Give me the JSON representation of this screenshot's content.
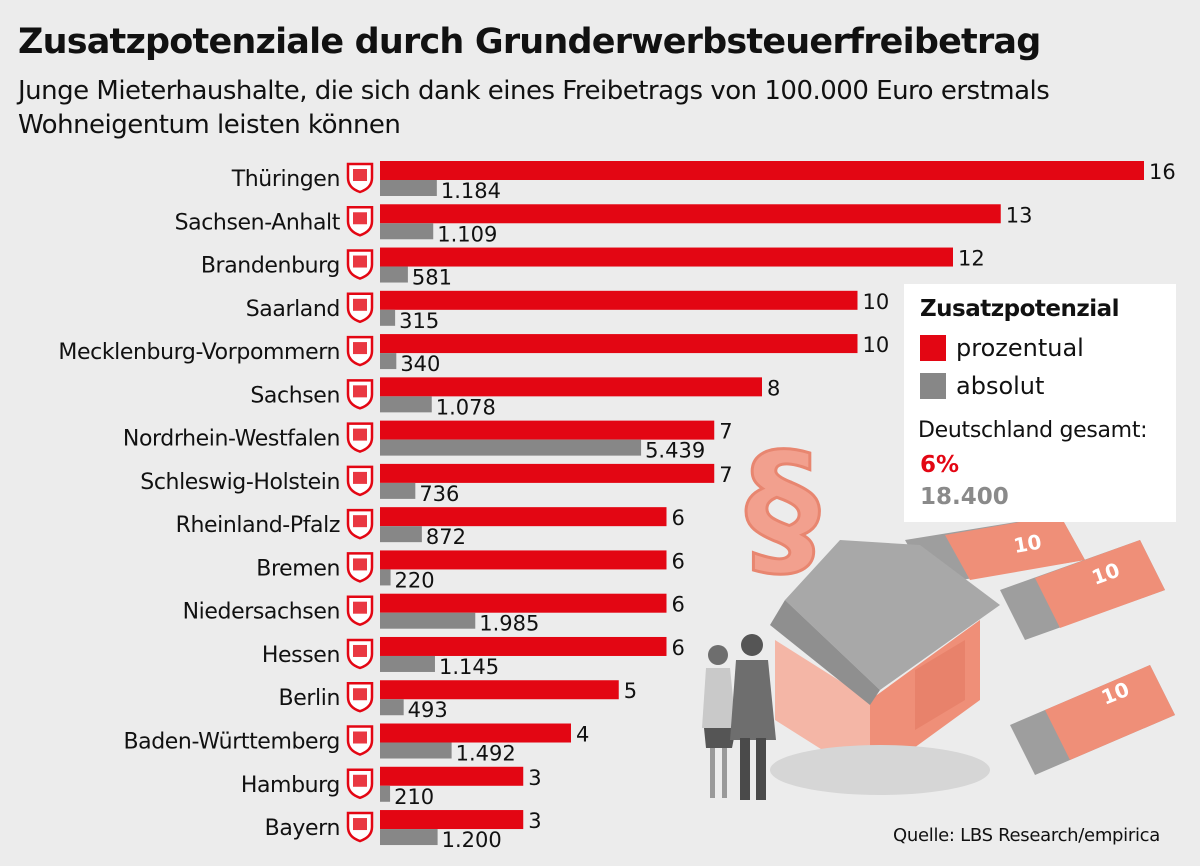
{
  "chart_data": {
    "type": "bar",
    "orientation": "horizontal",
    "title": "Zusatzpotenziale durch Grunderwerbsteuerfreibetrag",
    "subtitle": "Junge Mieterhaushalte, die sich dank eines Freibetrags von 100.000 Euro erstmals Wohneigentum leisten können",
    "categories": [
      "Thüringen",
      "Sachsen-Anhalt",
      "Brandenburg",
      "Saarland",
      "Mecklenburg-Vorpommern",
      "Sachsen",
      "Nordrhein-Westfalen",
      "Schleswig-Holstein",
      "Rheinland-Pfalz",
      "Bremen",
      "Niedersachsen",
      "Hessen",
      "Berlin",
      "Baden-Württemberg",
      "Hamburg",
      "Bayern"
    ],
    "series": [
      {
        "name": "prozentual",
        "color": "#e30613",
        "values": [
          16,
          13,
          12,
          10,
          10,
          8,
          7,
          7,
          6,
          6,
          6,
          6,
          5,
          4,
          3,
          3
        ],
        "labels": [
          "16",
          "13",
          "12",
          "10",
          "10",
          "8",
          "7",
          "7",
          "6",
          "6",
          "6",
          "6",
          "5",
          "4",
          "3",
          "3"
        ]
      },
      {
        "name": "absolut",
        "color": "#878787",
        "values": [
          1184,
          1109,
          581,
          315,
          340,
          1078,
          5439,
          736,
          872,
          220,
          1985,
          1145,
          493,
          1492,
          210,
          1200
        ],
        "labels": [
          "1.184",
          "1.109",
          "581",
          "315",
          "340",
          "1.078",
          "5.439",
          "736",
          "872",
          "220",
          "1.985",
          "1.145",
          "493",
          "1.492",
          "210",
          "1.200"
        ]
      }
    ],
    "grid": false,
    "legend_position": "right"
  },
  "legend": {
    "title": "Zusatzpotenzial",
    "items": [
      "prozentual",
      "absolut"
    ],
    "total_label": "Deutschland gesamt:",
    "total_percent": "6%",
    "total_absolute": "18.400"
  },
  "source": "Quelle: LBS Research/empirica",
  "illustration": {
    "banknote_label": "10",
    "icons": [
      "coat-of-arms-icon",
      "paragraph-sign",
      "house",
      "couple",
      "banknotes"
    ]
  }
}
